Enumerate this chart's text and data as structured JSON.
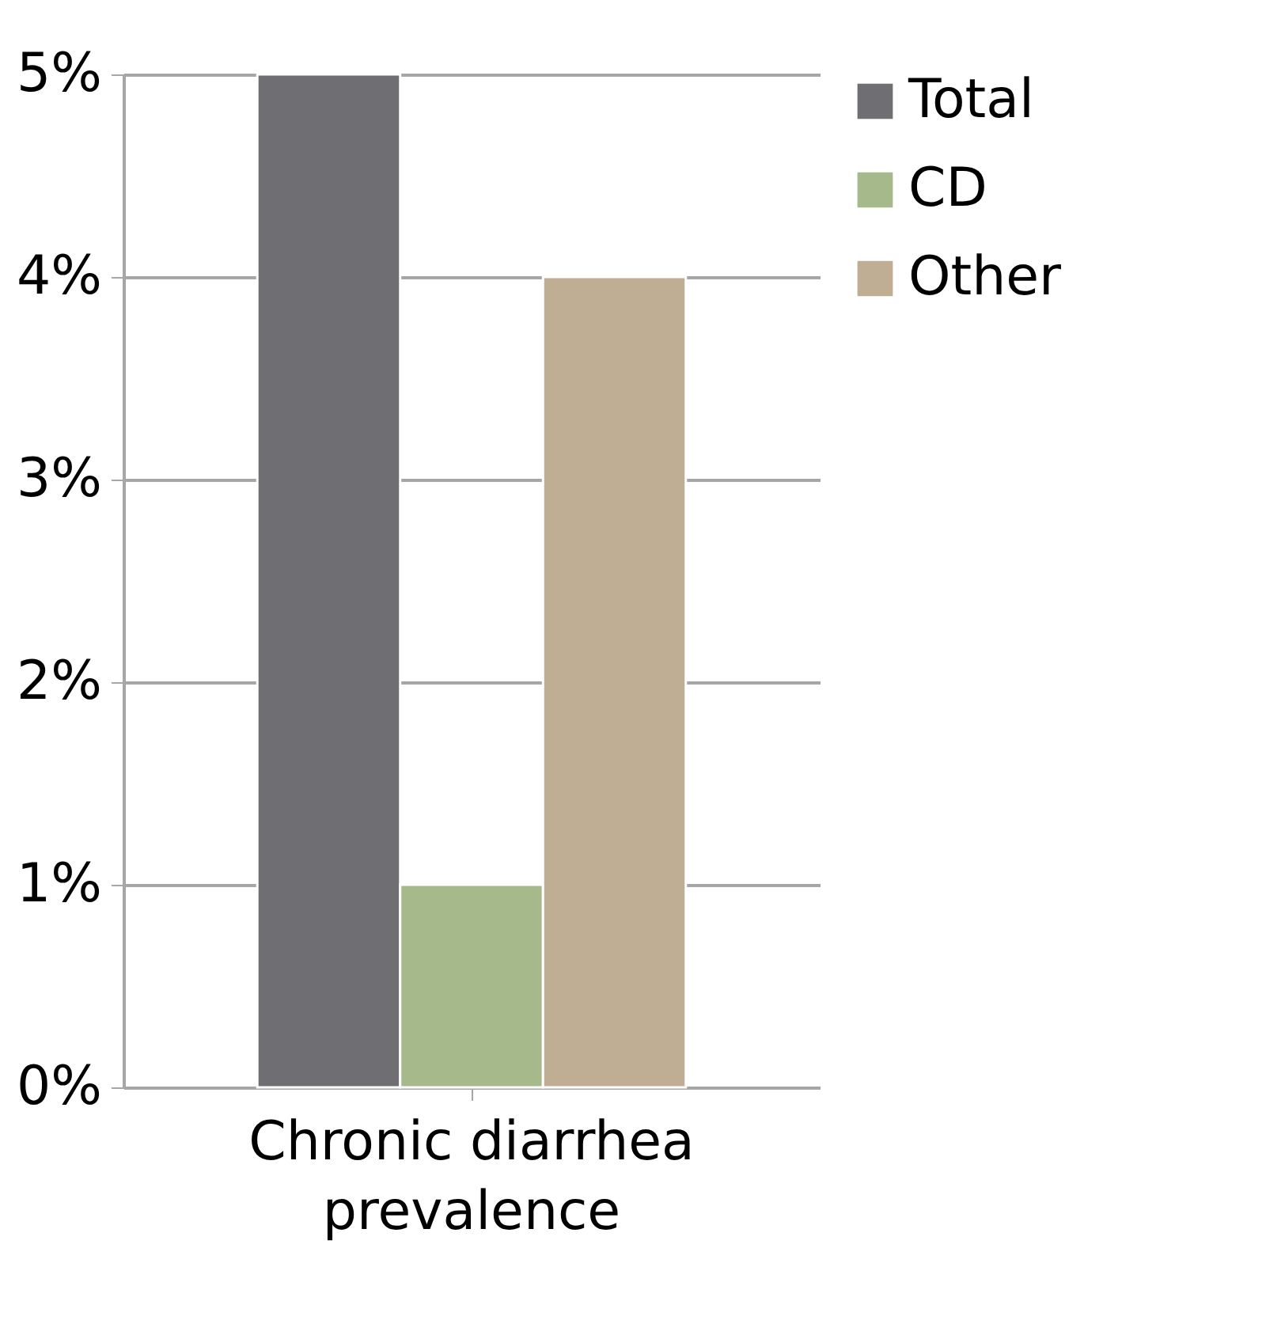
{
  "chart_data": {
    "type": "bar",
    "categories": [
      "Chronic diarrhea prevalence"
    ],
    "series": [
      {
        "name": "Total",
        "color": "#6f6e73",
        "values": [
          5
        ]
      },
      {
        "name": "CD",
        "color": "#a6b98a",
        "values": [
          1
        ]
      },
      {
        "name": "Other",
        "color": "#c0ae94",
        "values": [
          4
        ]
      }
    ],
    "ylim": [
      0,
      5
    ],
    "yticks": [
      {
        "value": 0,
        "label": "0%"
      },
      {
        "value": 1,
        "label": "1%"
      },
      {
        "value": 2,
        "label": "2%"
      },
      {
        "value": 3,
        "label": "3%"
      },
      {
        "value": 4,
        "label": "4%"
      },
      {
        "value": 5,
        "label": "5%"
      }
    ],
    "grid": "y",
    "legend": "right"
  }
}
